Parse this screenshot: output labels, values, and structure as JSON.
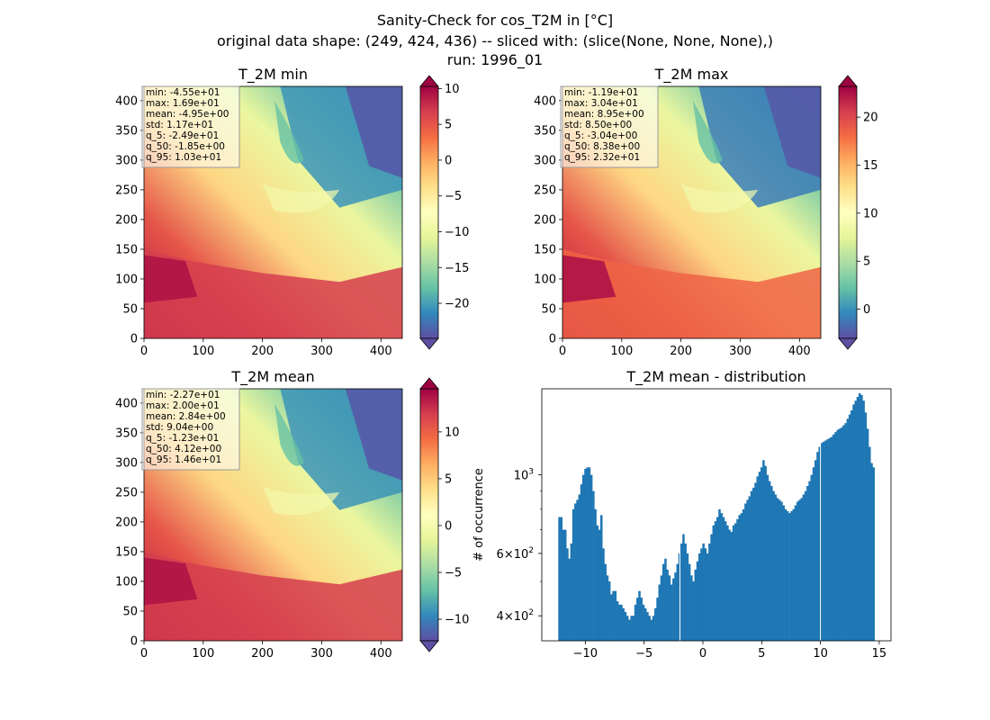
{
  "figure": {
    "suptitle": [
      "Sanity-Check for cos_T2M in [°C]",
      "original data shape: (249, 424, 436) -- sliced with: (slice(None, None, None),)",
      "run: 1996_01"
    ]
  },
  "chart_data": [
    {
      "type": "heatmap",
      "title": "T_2M min",
      "x_ticks": [
        0,
        100,
        200,
        300,
        400
      ],
      "y_ticks": [
        0,
        50,
        100,
        150,
        200,
        250,
        300,
        350,
        400
      ],
      "xlim": [
        0,
        436
      ],
      "ylim": [
        0,
        424
      ],
      "colormap": "Spectral_r",
      "colorbar": {
        "range": [
          -24.9,
          10.3
        ],
        "ticks": [
          10,
          5,
          0,
          -5,
          -10,
          -15,
          -20
        ],
        "tick_labels": [
          "10",
          "5",
          "0",
          "−5",
          "−10",
          "−15",
          "−20"
        ]
      },
      "stats": [
        "min: -4.55e+01",
        "max: 1.69e+01",
        "mean: -4.95e+00",
        "std: 1.17e+01",
        "q_5: -2.49e+01",
        "q_50: -1.85e+00",
        "q_95: 1.03e+01"
      ]
    },
    {
      "type": "heatmap",
      "title": "T_2M max",
      "x_ticks": [
        0,
        100,
        200,
        300,
        400
      ],
      "y_ticks": [
        0,
        50,
        100,
        150,
        200,
        250,
        300,
        350,
        400
      ],
      "xlim": [
        0,
        436
      ],
      "ylim": [
        0,
        424
      ],
      "colormap": "Spectral_r",
      "colorbar": {
        "range": [
          -3.04,
          23.2
        ],
        "ticks": [
          20,
          15,
          10,
          5,
          0
        ],
        "tick_labels": [
          "20",
          "15",
          "10",
          "5",
          "0"
        ]
      },
      "stats": [
        "min: -1.19e+01",
        "max: 3.04e+01",
        "mean: 8.95e+00",
        "std: 8.50e+00",
        "q_5: -3.04e+00",
        "q_50: 8.38e+00",
        "q_95: 2.32e+01"
      ]
    },
    {
      "type": "heatmap",
      "title": "T_2M mean",
      "x_ticks": [
        0,
        100,
        200,
        300,
        400
      ],
      "y_ticks": [
        0,
        50,
        100,
        150,
        200,
        250,
        300,
        350,
        400
      ],
      "xlim": [
        0,
        436
      ],
      "ylim": [
        0,
        424
      ],
      "colormap": "Spectral_r",
      "colorbar": {
        "range": [
          -12.3,
          14.6
        ],
        "ticks": [
          10,
          5,
          0,
          -5,
          -10
        ],
        "tick_labels": [
          "10",
          "5",
          "0",
          "−5",
          "−10"
        ]
      },
      "stats": [
        "min: -2.27e+01",
        "max: 2.00e+01",
        "mean: 2.84e+00",
        "std: 9.04e+00",
        "q_5: -1.23e+01",
        "q_50: 4.12e+00",
        "q_95: 1.46e+01"
      ]
    },
    {
      "type": "bar",
      "title": "T_2M mean - distribution",
      "ylabel": "# of occurrence",
      "xlabel": "",
      "yscale": "log",
      "xlim": [
        -13.7,
        16.0
      ],
      "ylim": [
        340,
        1750
      ],
      "x_ticks": [
        -10,
        -5,
        0,
        5,
        10,
        15
      ],
      "x_tick_labels": [
        "−10",
        "−5",
        "0",
        "5",
        "10",
        "15"
      ],
      "y_ticks": [
        {
          "value": 1000,
          "base": "10",
          "exp": "3"
        },
        {
          "value": 600,
          "base": "6×10",
          "exp": "2"
        },
        {
          "value": 400,
          "base": "4×10",
          "exp": "2"
        }
      ],
      "bin_range": [
        -12.3,
        14.6
      ],
      "bar_color": "#1f77b4",
      "counts": [
        760,
        760,
        700,
        700,
        620,
        580,
        640,
        800,
        830,
        850,
        880,
        940,
        1000,
        1040,
        1050,
        1050,
        1000,
        900,
        800,
        720,
        700,
        770,
        620,
        560,
        520,
        500,
        460,
        470,
        470,
        440,
        430,
        430,
        420,
        410,
        400,
        390,
        400,
        400,
        430,
        450,
        470,
        450,
        430,
        420,
        410,
        400,
        390,
        400,
        420,
        450,
        490,
        520,
        560,
        580,
        540,
        520,
        490,
        510,
        530,
        560,
        600,
        640,
        680,
        640,
        600,
        560,
        520,
        500,
        540,
        570,
        600,
        620,
        640,
        620,
        600,
        640,
        680,
        720,
        740,
        760,
        800,
        780,
        760,
        740,
        720,
        700,
        690,
        720,
        730,
        750,
        770,
        780,
        800,
        830,
        850,
        870,
        900,
        920,
        950,
        990,
        1020,
        1050,
        1100,
        1060,
        1000,
        960,
        930,
        900,
        880,
        860,
        850,
        840,
        820,
        800,
        790,
        780,
        790,
        800,
        820,
        840,
        850,
        860,
        880,
        900,
        930,
        960,
        1000,
        1050,
        1100,
        1160,
        1200,
        1230,
        1240,
        1250,
        1260,
        1270,
        1280,
        1300,
        1320,
        1340,
        1350,
        1360,
        1380,
        1400,
        1440,
        1480,
        1520,
        1580,
        1620,
        1660,
        1700,
        1680,
        1620,
        1500,
        1350,
        1200,
        1080,
        1050
      ],
      "dips": [
        {
          "x": -1.95
        },
        {
          "x": 10.0
        }
      ]
    }
  ]
}
